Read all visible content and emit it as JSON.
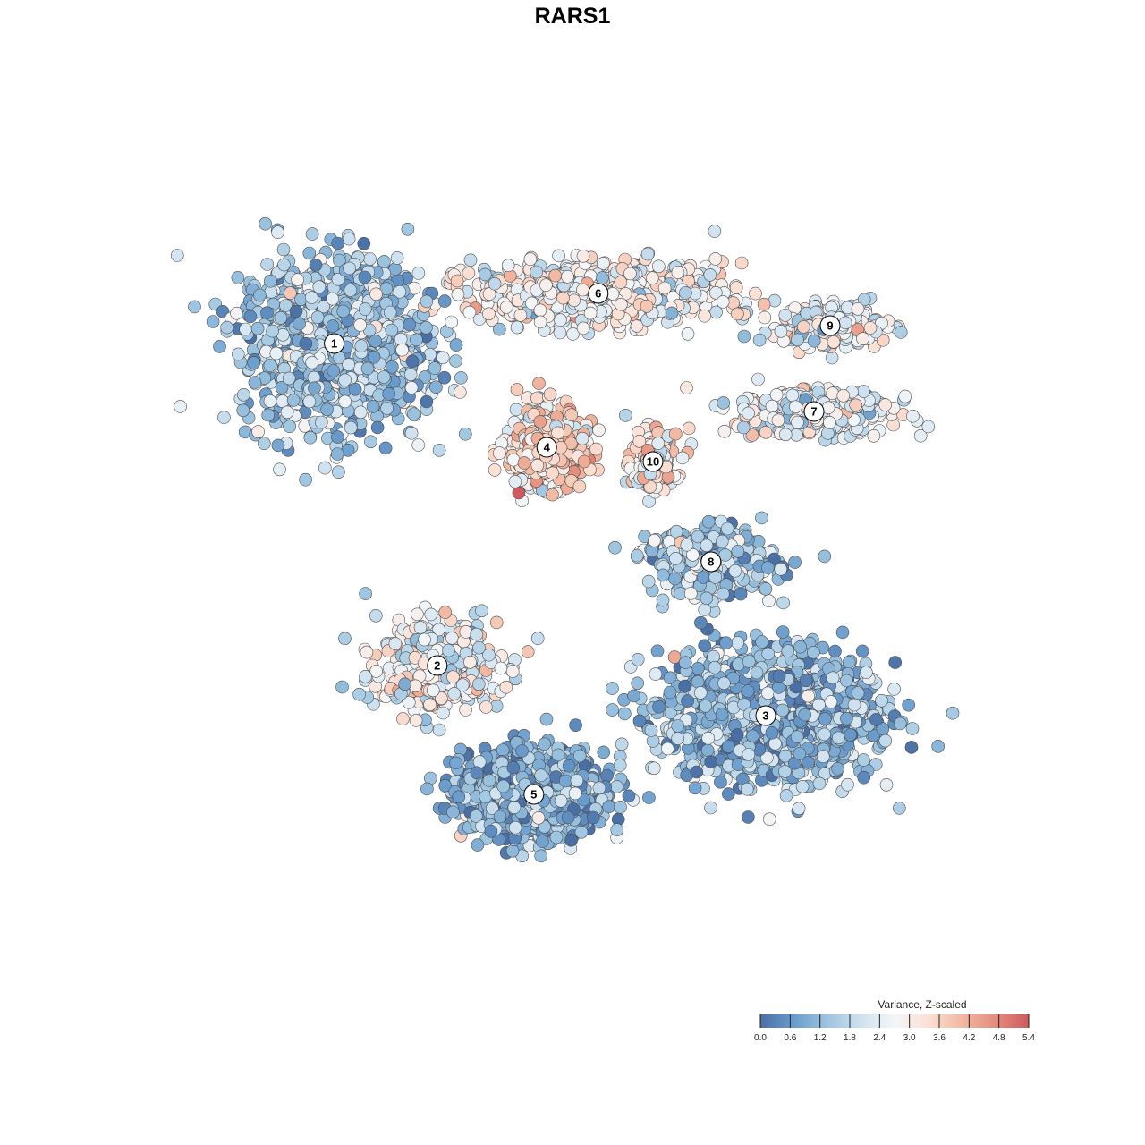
{
  "chart_data": {
    "type": "scatter",
    "title": "RARS1",
    "xlabel": "",
    "ylabel": "",
    "grid": false,
    "axes_visible": false,
    "color_scale": {
      "title": "Variance, Z-scaled",
      "min": 0.0,
      "max": 5.4,
      "ticks": [
        "0.0",
        "0.6",
        "1.2",
        "1.8",
        "2.4",
        "3.0",
        "3.6",
        "4.2",
        "4.8",
        "5.4"
      ],
      "palette": [
        "#4a6fa5",
        "#6a9ccc",
        "#9cc4e0",
        "#cfe2f0",
        "#f4f6f8",
        "#fbe0d4",
        "#f2b9a2",
        "#e58d7d",
        "#cc5a5e"
      ],
      "placement": "bottom-right"
    },
    "clusters": [
      {
        "label": "1",
        "x": -7.4,
        "y": 6.4,
        "spread": [
          3.2,
          2.6
        ],
        "mean_value": 1.5,
        "n": 1100
      },
      {
        "label": "2",
        "x": -4.2,
        "y": -2.6,
        "spread": [
          2.1,
          1.4
        ],
        "mean_value": 2.6,
        "n": 420
      },
      {
        "label": "3",
        "x": 6.0,
        "y": -4.0,
        "spread": [
          3.6,
          1.9
        ],
        "mean_value": 1.3,
        "n": 1500
      },
      {
        "label": "4",
        "x": -0.8,
        "y": 3.5,
        "spread": [
          1.3,
          1.2
        ],
        "mean_value": 3.3,
        "n": 500
      },
      {
        "label": "5",
        "x": -1.2,
        "y": -6.2,
        "spread": [
          2.4,
          1.3
        ],
        "mean_value": 1.1,
        "n": 1100
      },
      {
        "label": "6",
        "x": 0.8,
        "y": 7.8,
        "spread": [
          4.2,
          0.9
        ],
        "mean_value": 2.7,
        "n": 900
      },
      {
        "label": "7",
        "x": 7.5,
        "y": 4.5,
        "spread": [
          2.6,
          0.7
        ],
        "mean_value": 2.5,
        "n": 380
      },
      {
        "label": "8",
        "x": 4.3,
        "y": 0.3,
        "spread": [
          2.2,
          1.0
        ],
        "mean_value": 1.5,
        "n": 380
      },
      {
        "label": "9",
        "x": 8.0,
        "y": 6.9,
        "spread": [
          1.9,
          0.7
        ],
        "mean_value": 2.6,
        "n": 260
      },
      {
        "label": "10",
        "x": 2.5,
        "y": 3.1,
        "spread": [
          0.8,
          0.9
        ],
        "mean_value": 2.9,
        "n": 170
      }
    ]
  }
}
